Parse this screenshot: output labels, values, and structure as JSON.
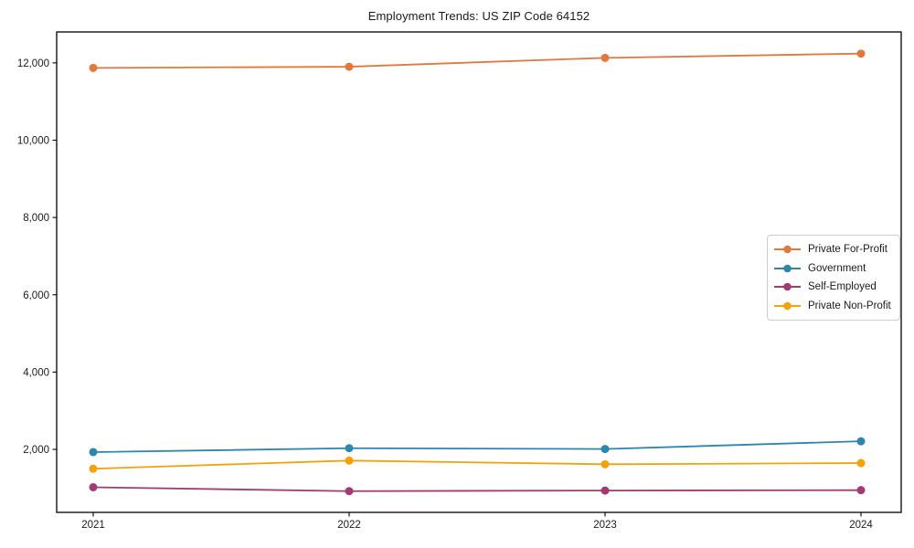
{
  "chart_data": {
    "type": "line",
    "title": "Employment Trends: US ZIP Code 64152",
    "x": [
      "2021",
      "2022",
      "2023",
      "2024"
    ],
    "series": [
      {
        "name": "Private For-Profit",
        "color": "#E1793E",
        "values": [
          11870,
          11900,
          12130,
          12240
        ]
      },
      {
        "name": "Government",
        "color": "#2E86A8",
        "values": [
          1930,
          2030,
          2010,
          2210
        ]
      },
      {
        "name": "Self-Employed",
        "color": "#A23B72",
        "values": [
          1020,
          920,
          935,
          945
        ]
      },
      {
        "name": "Private Non-Profit",
        "color": "#F2A30B",
        "values": [
          1500,
          1710,
          1615,
          1645
        ]
      }
    ],
    "ylim": [
      370,
      12800
    ],
    "yticks": [
      2000,
      4000,
      6000,
      8000,
      10000,
      12000
    ],
    "y_ticklabels": [
      "2,000",
      "4,000",
      "6,000",
      "8,000",
      "10,000",
      "12,000"
    ],
    "xlabel": "",
    "ylabel": "",
    "grid": false,
    "legend_position": "right-middle",
    "axis_color": "#000000",
    "text_color": "#1a1a1a"
  }
}
